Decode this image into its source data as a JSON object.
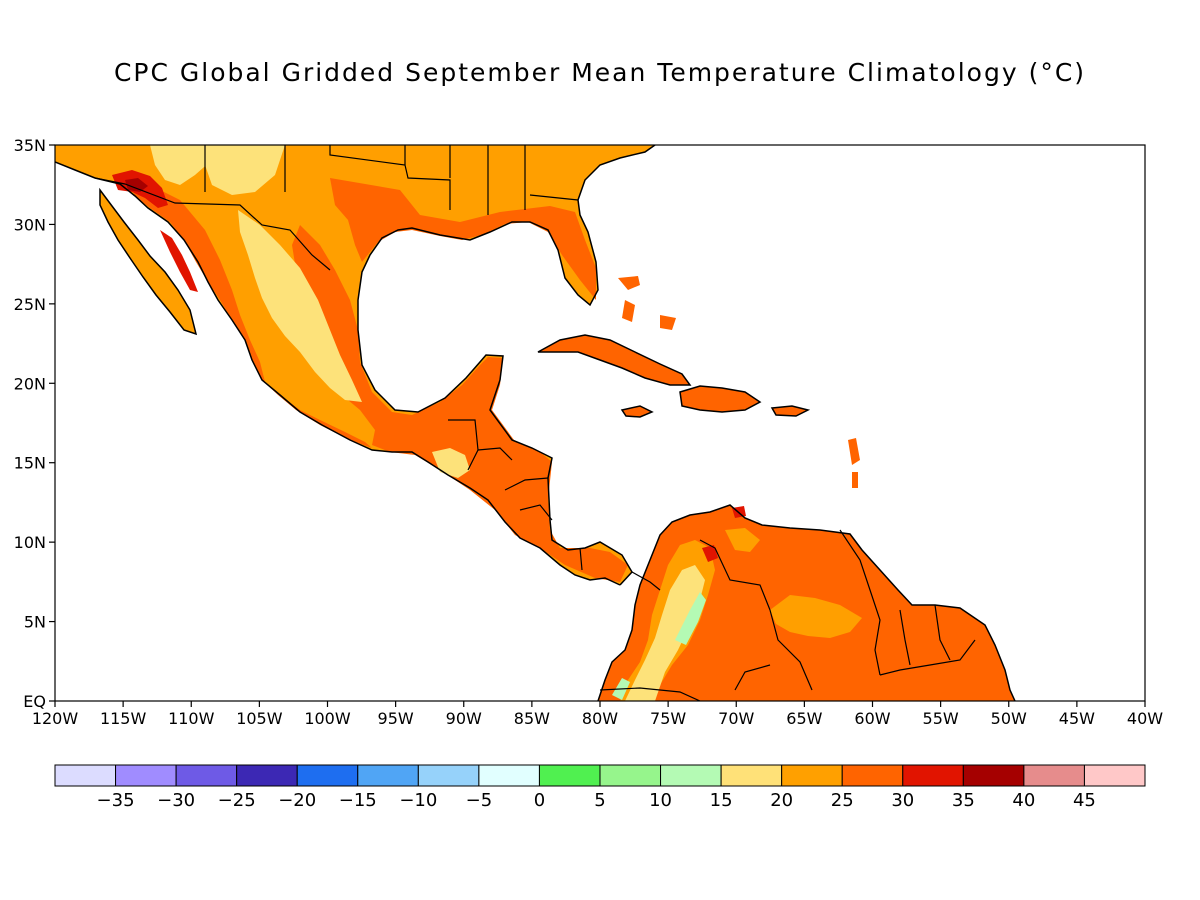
{
  "title": "CPC Global Gridded September Mean Temperature Climatology (°C)",
  "map": {
    "lon_range": [
      -120,
      -40
    ],
    "lat_range": [
      0,
      35
    ],
    "x_ticks": [
      {
        "lon": -120,
        "label": "120W"
      },
      {
        "lon": -115,
        "label": "115W"
      },
      {
        "lon": -110,
        "label": "110W"
      },
      {
        "lon": -105,
        "label": "105W"
      },
      {
        "lon": -100,
        "label": "100W"
      },
      {
        "lon": -95,
        "label": "95W"
      },
      {
        "lon": -90,
        "label": "90W"
      },
      {
        "lon": -85,
        "label": "85W"
      },
      {
        "lon": -80,
        "label": "80W"
      },
      {
        "lon": -75,
        "label": "75W"
      },
      {
        "lon": -70,
        "label": "70W"
      },
      {
        "lon": -65,
        "label": "65W"
      },
      {
        "lon": -60,
        "label": "60W"
      },
      {
        "lon": -55,
        "label": "55W"
      },
      {
        "lon": -50,
        "label": "50W"
      },
      {
        "lon": -45,
        "label": "45W"
      },
      {
        "lon": -40,
        "label": "40W"
      }
    ],
    "y_ticks": [
      {
        "lat": 0,
        "label": "EQ"
      },
      {
        "lat": 5,
        "label": "5N"
      },
      {
        "lat": 10,
        "label": "10N"
      },
      {
        "lat": 15,
        "label": "15N"
      },
      {
        "lat": 20,
        "label": "20N"
      },
      {
        "lat": 25,
        "label": "25N"
      },
      {
        "lat": 30,
        "label": "30N"
      },
      {
        "lat": 35,
        "label": "35N"
      }
    ],
    "region": "Mexico, Central America, Caribbean and northern South America",
    "colors": {
      "c20_25": "#fde27a",
      "c25_30": "#ff9f00",
      "c30_35": "#ff6400",
      "c35_40": "#e11400",
      "c40_45": "#a50000",
      "c10_15": "#b4fab4",
      "coast": "#000000"
    }
  },
  "colorbar": {
    "bins": [
      {
        "color": "#dcdcff"
      },
      {
        "color": "#a08cff"
      },
      {
        "color": "#6e5ae6"
      },
      {
        "color": "#3c28b4"
      },
      {
        "color": "#1e6ef0"
      },
      {
        "color": "#50a5f5"
      },
      {
        "color": "#96d2fa"
      },
      {
        "color": "#e1ffff"
      },
      {
        "color": "#50f050"
      },
      {
        "color": "#96f58c"
      },
      {
        "color": "#b4fab4"
      },
      {
        "color": "#ffe178"
      },
      {
        "color": "#ffa000"
      },
      {
        "color": "#ff6400"
      },
      {
        "color": "#e11400"
      },
      {
        "color": "#a50000"
      },
      {
        "color": "#e68c8c"
      },
      {
        "color": "#ffc8c8"
      }
    ],
    "labels": [
      "−35",
      "−30",
      "−25",
      "−20",
      "−15",
      "−10",
      "−5",
      "0",
      "5",
      "10",
      "15",
      "20",
      "25",
      "30",
      "35",
      "40",
      "45"
    ]
  }
}
